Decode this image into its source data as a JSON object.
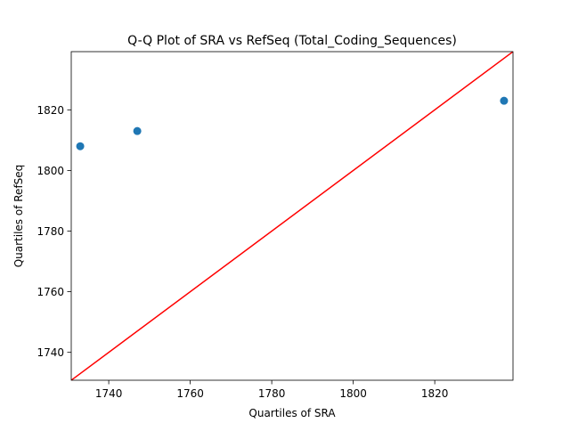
{
  "chart_data": {
    "type": "scatter",
    "title": "Q-Q Plot of SRA vs RefSeq (Total_Coding_Sequences)",
    "xlabel": "Quartiles of SRA",
    "ylabel": "Quartiles of RefSeq",
    "xlim": [
      1730.8,
      1839.2
    ],
    "ylim": [
      1730.8,
      1839.2
    ],
    "x_ticks": [
      1740,
      1760,
      1780,
      1800,
      1820
    ],
    "y_ticks": [
      1740,
      1760,
      1780,
      1800,
      1820
    ],
    "x_tick_labels": [
      "1740",
      "1760",
      "1780",
      "1800",
      "1820"
    ],
    "y_tick_labels": [
      "1740",
      "1760",
      "1780",
      "1800",
      "1820"
    ],
    "grid": false,
    "points": [
      {
        "x": 1733,
        "y": 1808
      },
      {
        "x": 1747,
        "y": 1813
      },
      {
        "x": 1837,
        "y": 1823
      }
    ],
    "reference_line": {
      "from": [
        1730.8,
        1730.8
      ],
      "to": [
        1839.2,
        1839.2
      ]
    },
    "colors": {
      "points": "#1f77b4",
      "reference_line": "#ff0000"
    }
  }
}
